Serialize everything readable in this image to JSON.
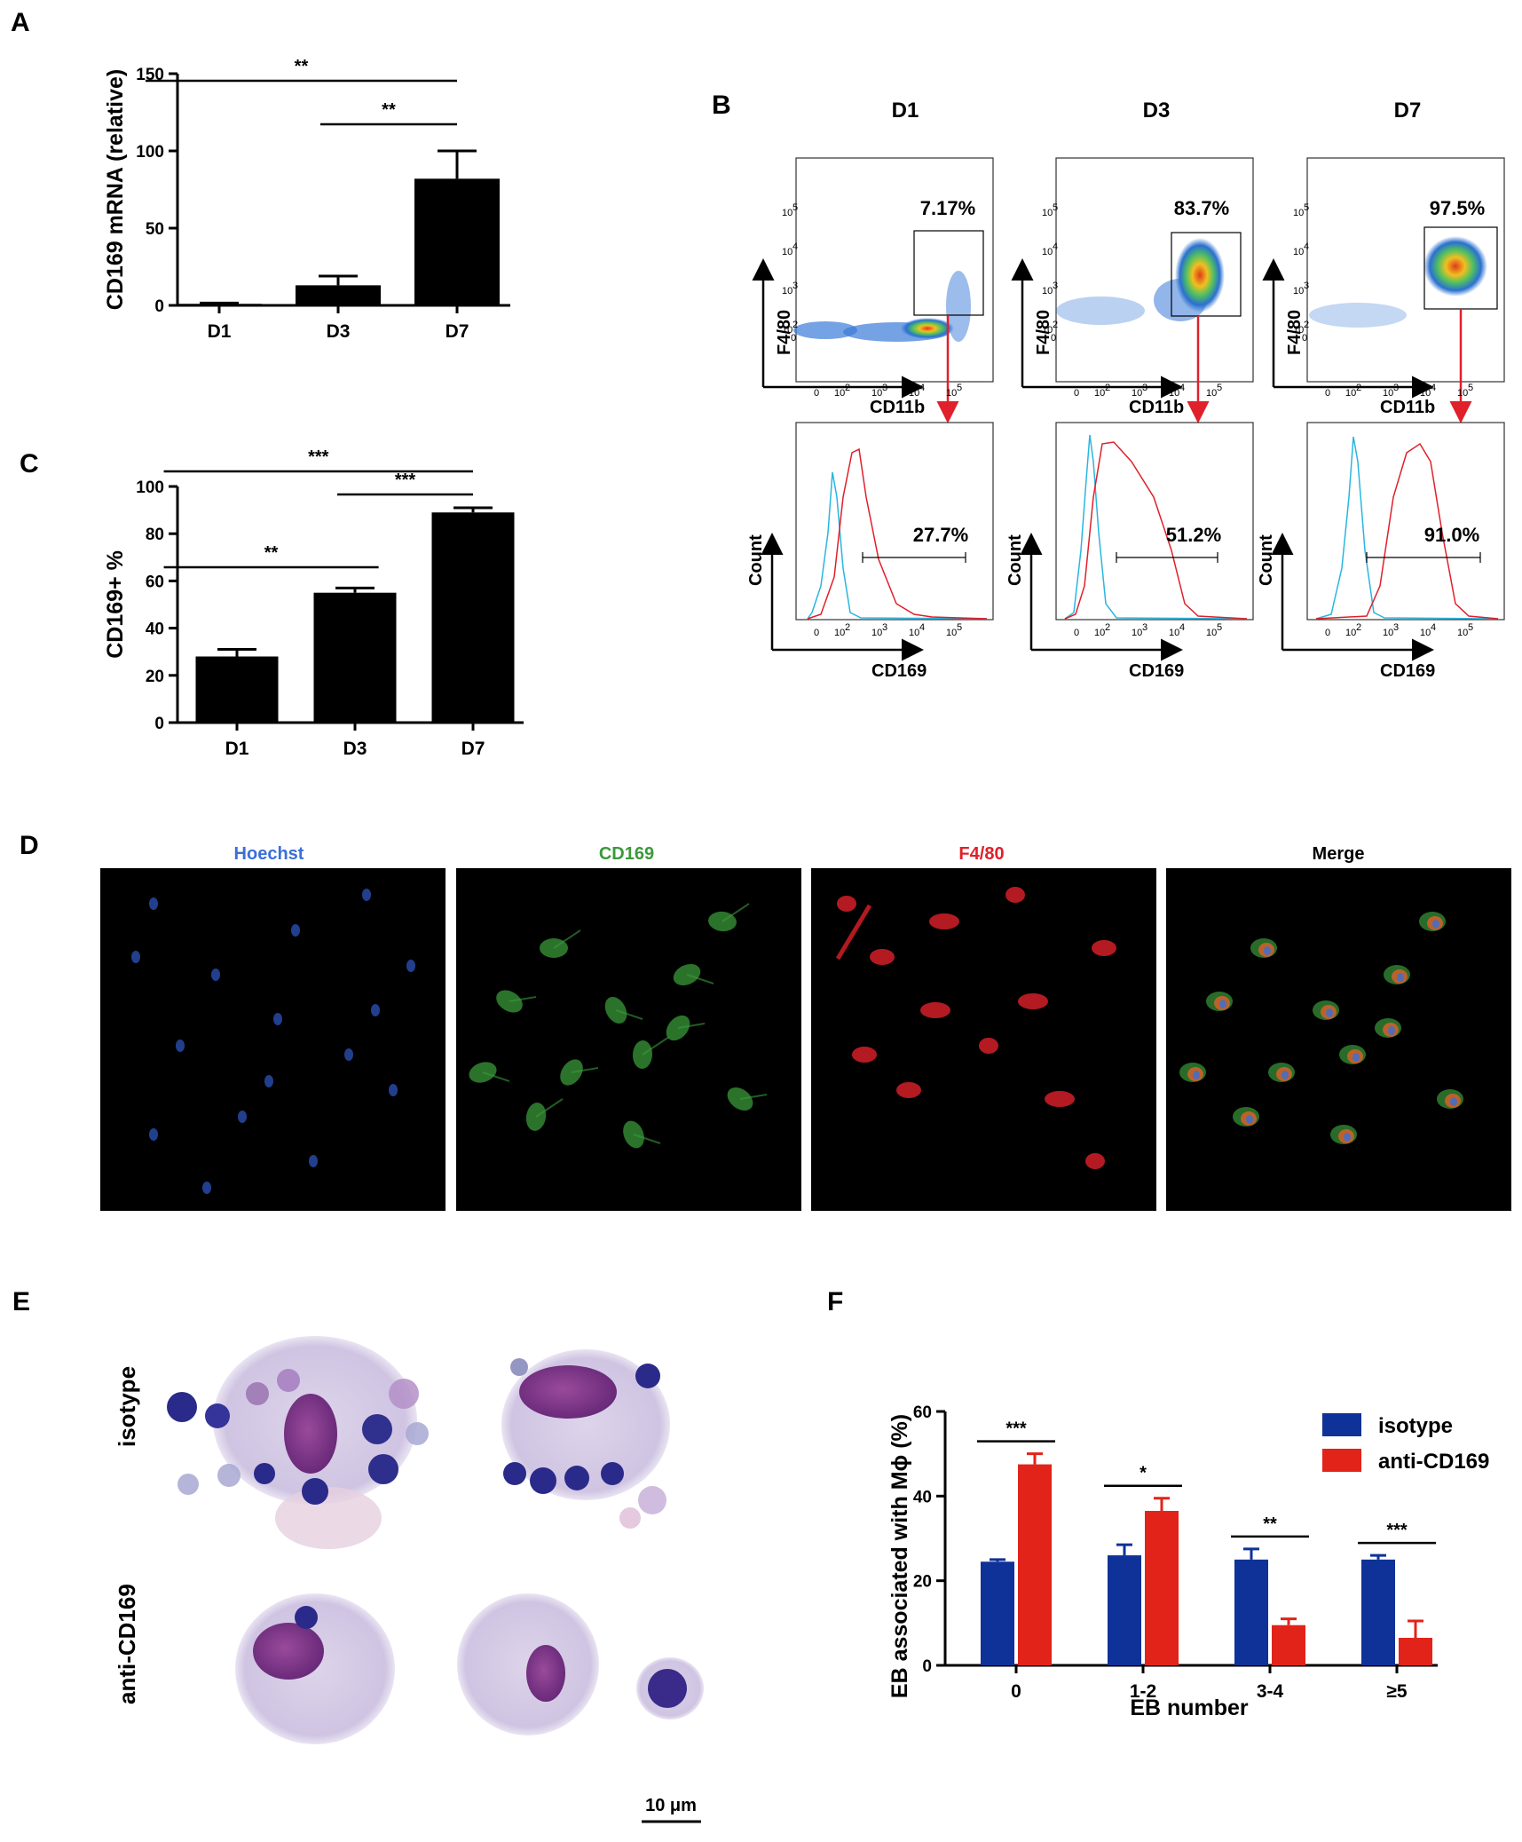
{
  "colors": {
    "panel_letter": "#1f4e8c",
    "bar_black": "#000000",
    "isotype": "#0f3298",
    "anti_cd169": "#e2231a",
    "hist_isotype": "#29b6e0",
    "hist_cd169": "#e0202a",
    "arrow": "#e0202a",
    "hoechst": "#3a6fd8",
    "cd169": "#3a9a3a",
    "f480": "#e0202a"
  },
  "panels": {
    "a": "A",
    "b": "B",
    "c": "C",
    "d": "D",
    "e": "E",
    "f": "F"
  },
  "chart_data": [
    {
      "id": "A",
      "type": "bar",
      "categories": [
        "D1",
        "D3",
        "D7"
      ],
      "values": [
        1,
        13,
        82
      ],
      "errors": [
        0.5,
        6,
        18
      ],
      "ylabel": "CD169 mRNA (relative)",
      "ylim": [
        0,
        150
      ],
      "yticks": [
        0,
        50,
        100,
        150
      ],
      "significance": [
        {
          "from": 0,
          "to": 2,
          "label": "**",
          "level": 0
        },
        {
          "from": 1,
          "to": 2,
          "label": "**",
          "level": 1
        }
      ]
    },
    {
      "id": "C",
      "type": "bar",
      "categories": [
        "D1",
        "D3",
        "D7"
      ],
      "values": [
        28,
        55,
        89
      ],
      "errors": [
        3,
        2,
        2
      ],
      "ylabel": "CD169+ %",
      "ylim": [
        0,
        100
      ],
      "yticks": [
        0,
        20,
        40,
        60,
        80,
        100
      ],
      "significance": [
        {
          "from": 0,
          "to": 2,
          "label": "***",
          "level": 0
        },
        {
          "from": 1,
          "to": 2,
          "label": "***",
          "level": 1
        },
        {
          "from": 0,
          "to": 1,
          "label": "**",
          "level": 2
        }
      ]
    },
    {
      "id": "F",
      "type": "bar",
      "categories": [
        "0",
        "1-2",
        "3-4",
        "≥5"
      ],
      "series": [
        {
          "name": "isotype",
          "values": [
            24.5,
            26,
            25,
            25
          ],
          "errors": [
            0.5,
            2.5,
            2.5,
            1
          ]
        },
        {
          "name": "anti-CD169",
          "values": [
            47.5,
            36.5,
            9.5,
            6.5
          ],
          "errors": [
            2.5,
            3,
            1.5,
            4
          ]
        }
      ],
      "xlabel": "EB number",
      "ylabel": "EB associated with Mϕ (%)",
      "ylim": [
        0,
        60
      ],
      "yticks": [
        0,
        20,
        40,
        60
      ],
      "significance": [
        "***",
        "*",
        "**",
        "***"
      ],
      "legend_position": "top-right"
    }
  ],
  "flow": {
    "days": [
      "D1",
      "D3",
      "D7"
    ],
    "dot_xlabel": "CD11b",
    "dot_ylabel": "F4/80",
    "hist_xlabel": "CD169",
    "hist_ylabel": "Count",
    "gate_percent": [
      "7.17%",
      "83.7%",
      "97.5%"
    ],
    "hist_percent": [
      "27.7%",
      "51.2%",
      "91.0%"
    ],
    "tick_0": "0",
    "tick_labels": [
      "10",
      "10",
      "10",
      "10"
    ],
    "tick_exps": [
      "2",
      "3",
      "4",
      "5"
    ]
  },
  "microscopy": {
    "labels": [
      "Hoechst",
      "CD169",
      "F4/80",
      "Merge"
    ]
  },
  "micrograph": {
    "row_labels": [
      "isotype",
      "anti-CD169"
    ],
    "scale_bar": "10 μm"
  }
}
